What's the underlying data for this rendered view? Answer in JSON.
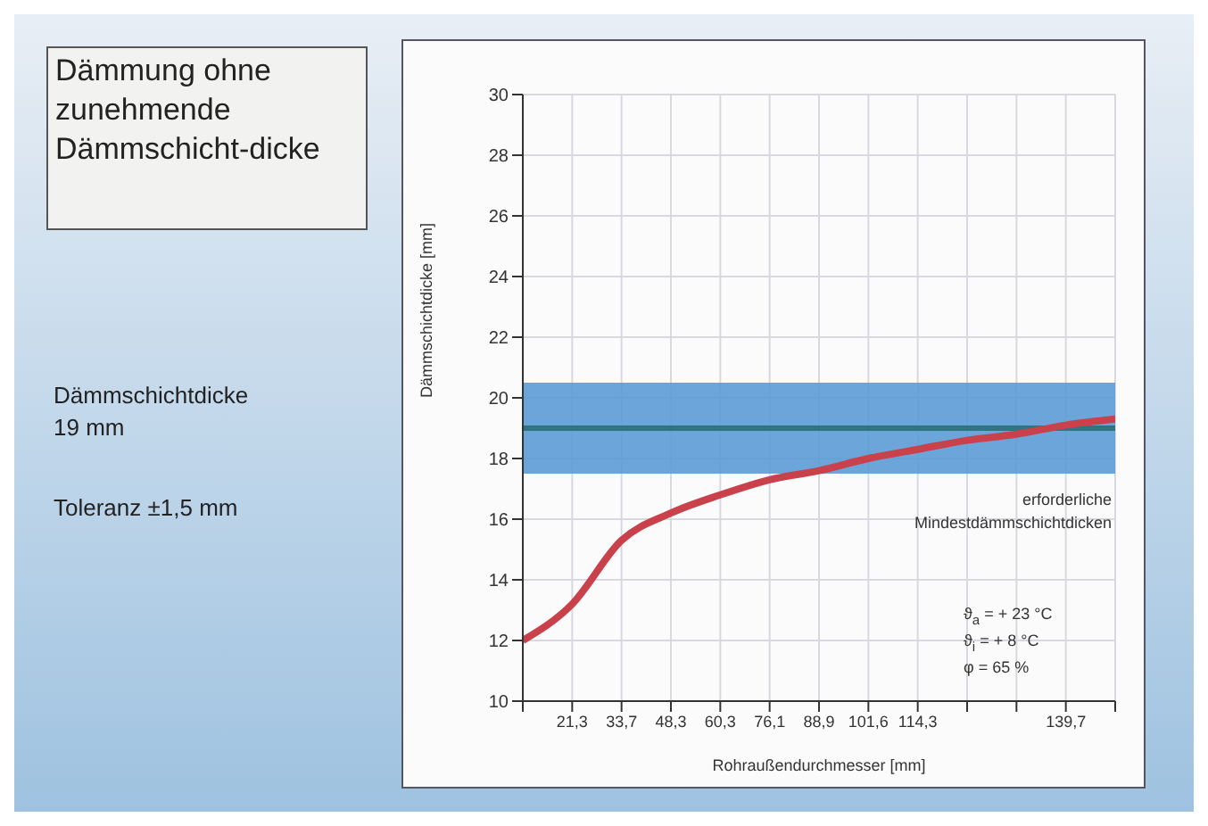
{
  "chart_data": {
    "type": "line",
    "title": "Dämmung ohne zunehmende Dämmschicht-dicke",
    "xlabel": "Rohraußendurchmesser [mm]",
    "ylabel": "Dämmschichtdicke [mm]",
    "categories": [
      null,
      "21,3",
      "33,7",
      "48,3",
      "60,3",
      "76,1",
      "88,9",
      "101,6",
      "114,3",
      null,
      null,
      "139,7",
      null
    ],
    "series": [
      {
        "color": "#c8414b",
        "values": [
          12,
          13.2,
          15.3,
          16.2,
          16.8,
          17.3,
          17.6,
          18.0,
          18.3,
          18.6,
          18.8,
          19.1,
          19.3
        ]
      }
    ],
    "ylim": [
      10,
      30
    ],
    "yticks": [
      10,
      12,
      14,
      16,
      18,
      20,
      22,
      24,
      26,
      28,
      30
    ],
    "grid": true,
    "marker": "none",
    "line_style": "solid",
    "ref_lines": [
      {
        "axis": "y",
        "value": 19,
        "color": "#2f7480"
      }
    ],
    "bands": [
      {
        "axis": "y",
        "from": 17.5,
        "to": 20.5,
        "color": "#5b9bd5"
      }
    ],
    "annotations": [
      "Dämmschichtdicke\n19 mm",
      "Toleranz ±1,5 mm",
      "erforderliche\nMindestdämmschichtdicken",
      "ϑ$_{a}$ = + 23 °C",
      "ϑ$_{i}$ = +   8 °C",
      "φ =   65 %"
    ]
  }
}
